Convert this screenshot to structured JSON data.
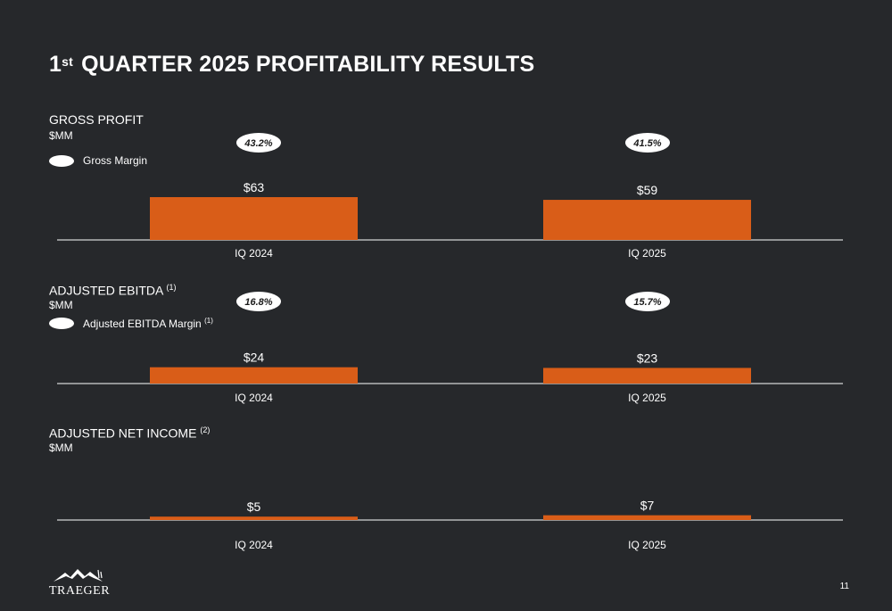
{
  "slide": {
    "title_prefix": "1",
    "title_sup": "st",
    "title_rest": " QUARTER 2025 PROFITABILITY RESULTS",
    "page_number": "11",
    "logo_text": "TRAEGER"
  },
  "sections": [
    {
      "title": "GROSS PROFIT",
      "footnote": "",
      "unit": "$MM",
      "legend": "Gross Margin",
      "legend_footnote": ""
    },
    {
      "title": "ADJUSTED EBITDA",
      "footnote": "(1)",
      "unit": "$MM",
      "legend": "Adjusted EBITDA Margin",
      "legend_footnote": "(1)"
    },
    {
      "title": "ADJUSTED NET INCOME",
      "footnote": "(2)",
      "unit": "$MM",
      "legend": "",
      "legend_footnote": ""
    }
  ],
  "colors": {
    "bar": "#d95d18",
    "background": "#26282b",
    "axis": "#ffffff",
    "badge": "#ffffff",
    "badge_text": "#1a1a1a"
  },
  "chart_data": [
    {
      "type": "bar",
      "title": "GROSS PROFIT",
      "ylabel": "$MM",
      "categories": [
        "IQ 2024",
        "IQ 2025"
      ],
      "values": [
        63,
        59
      ],
      "value_labels": [
        "$63",
        "$59"
      ],
      "margins": [
        "43.2%",
        "41.5%"
      ],
      "legend": "Gross Margin"
    },
    {
      "type": "bar",
      "title": "ADJUSTED EBITDA",
      "ylabel": "$MM",
      "categories": [
        "IQ 2024",
        "IQ 2025"
      ],
      "values": [
        24,
        23
      ],
      "value_labels": [
        "$24",
        "$23"
      ],
      "margins": [
        "16.8%",
        "15.7%"
      ],
      "legend": "Adjusted EBITDA Margin"
    },
    {
      "type": "bar",
      "title": "ADJUSTED NET INCOME",
      "ylabel": "$MM",
      "categories": [
        "IQ 2024",
        "IQ 2025"
      ],
      "values": [
        5,
        7
      ],
      "value_labels": [
        "$5",
        "$7"
      ],
      "margins": []
    }
  ]
}
